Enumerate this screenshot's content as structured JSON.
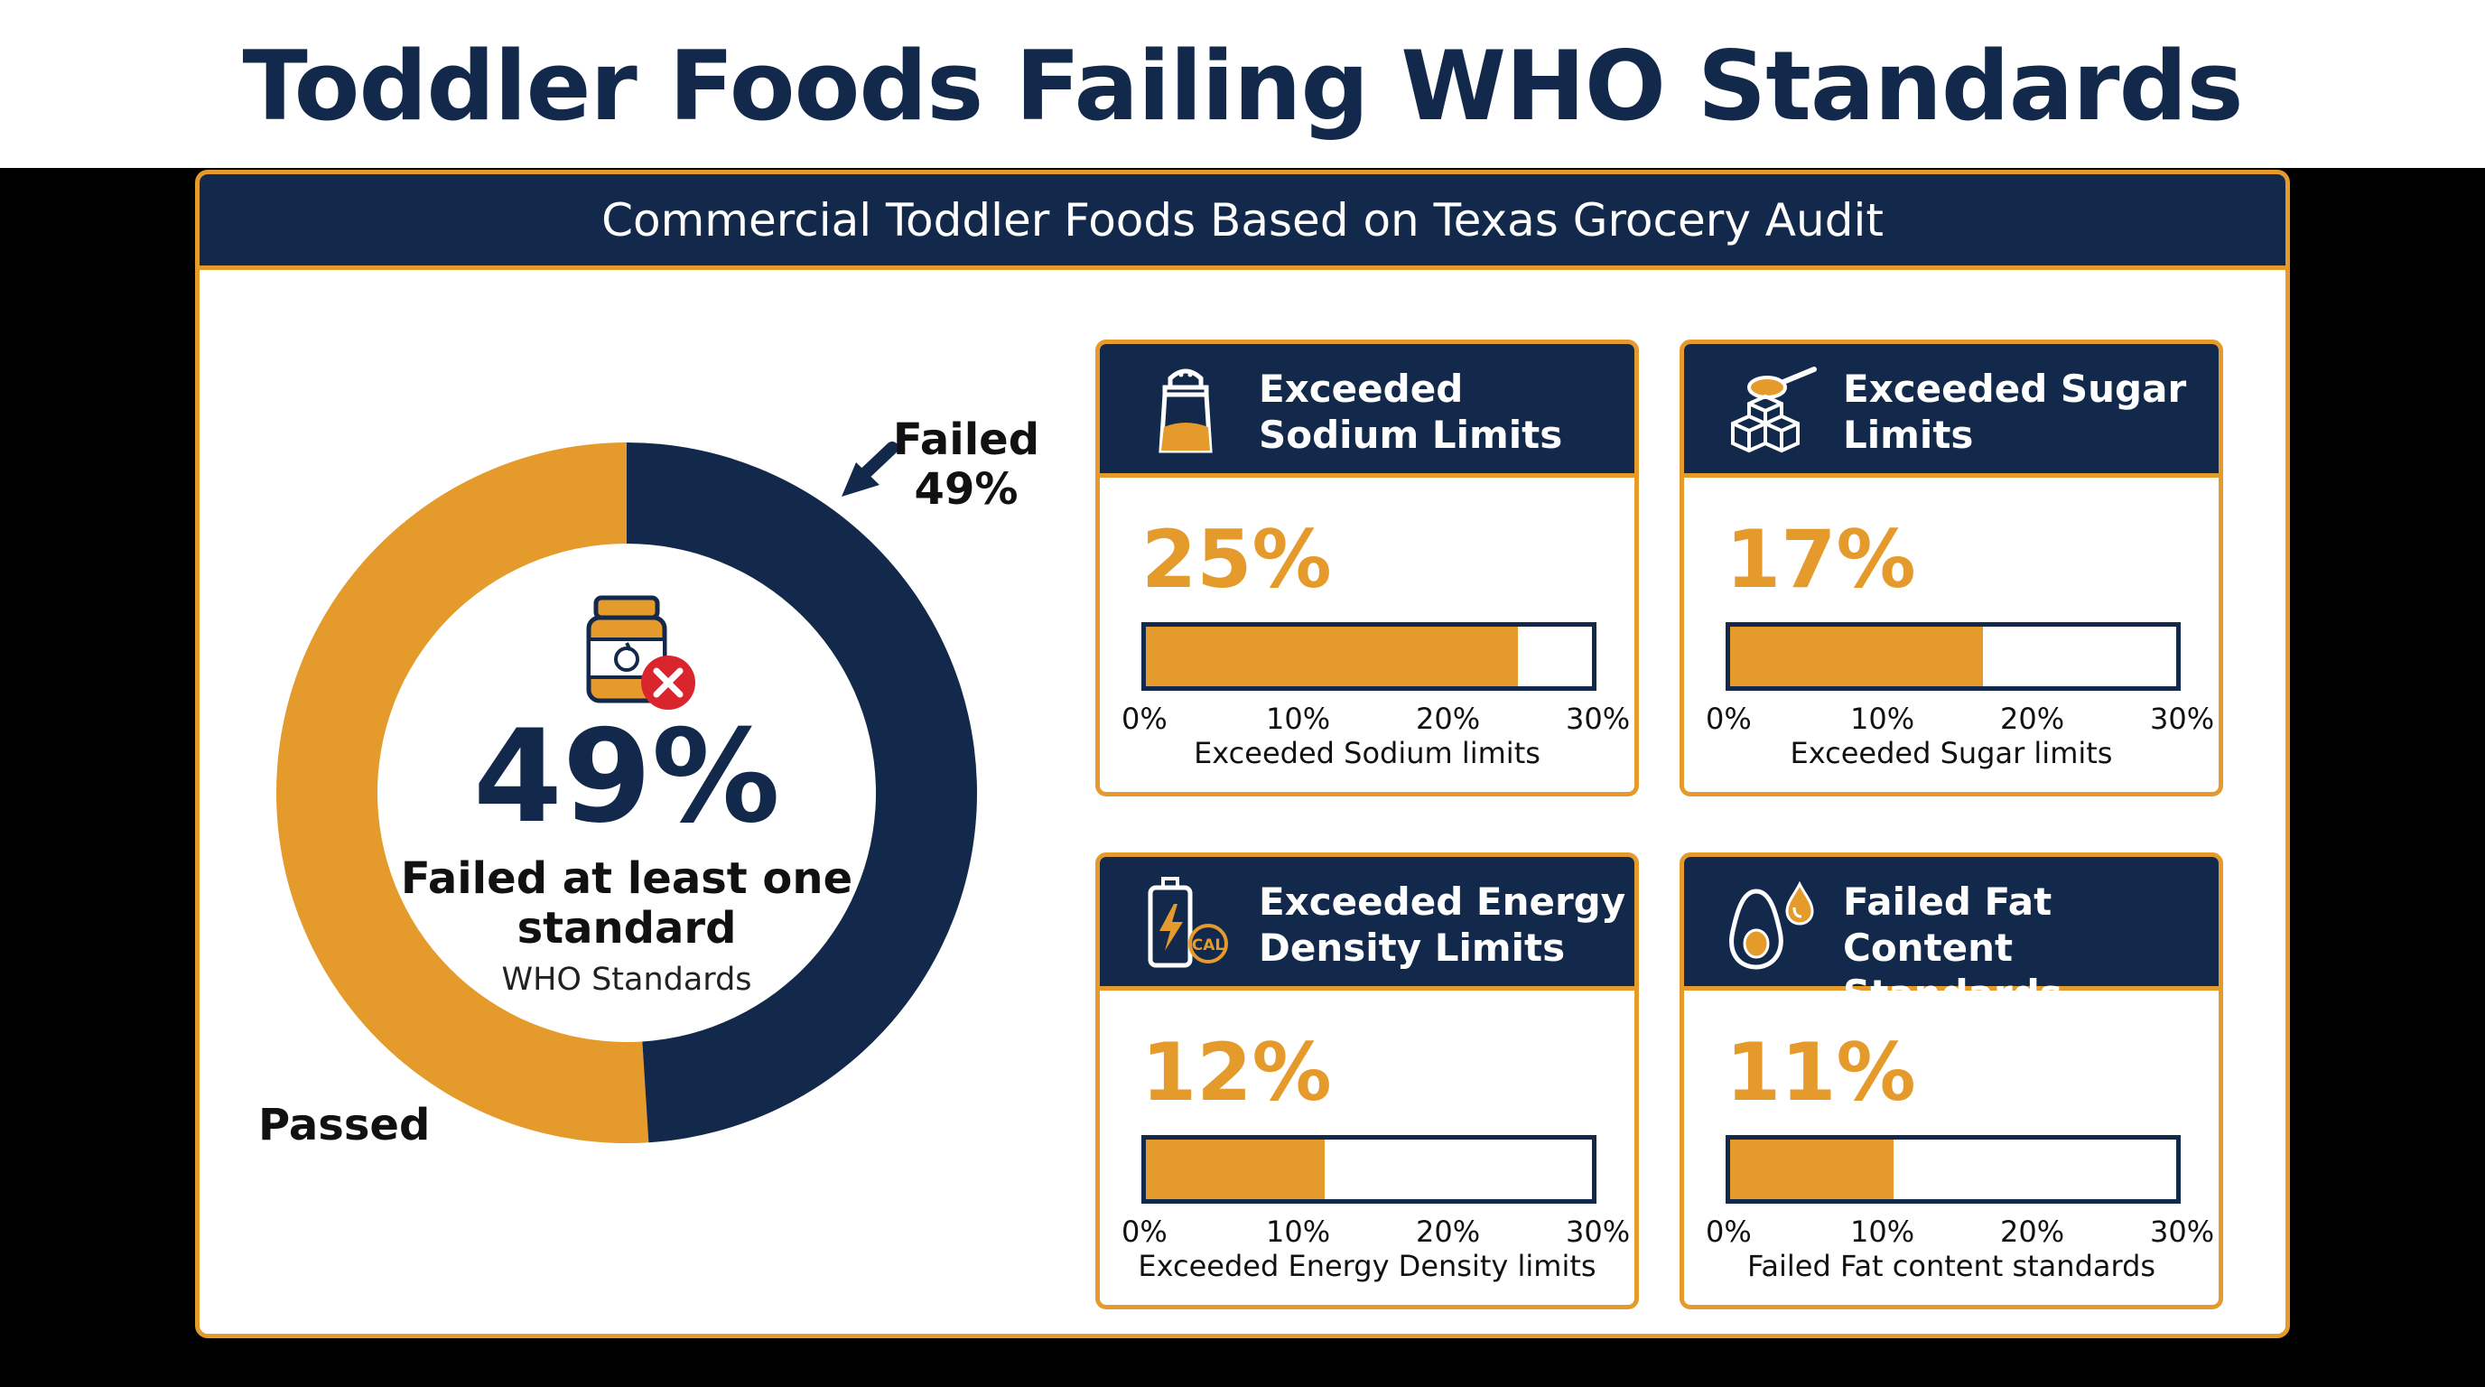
{
  "header": {
    "title": "Toddler Foods Failing WHO Standards",
    "subtitle": "Commercial Toddler Foods Based on Texas Grocery Audit"
  },
  "colors": {
    "navy": "#13294b",
    "orange": "#e59a2c",
    "red": "#d9262c"
  },
  "chart_data": [
    {
      "type": "pie",
      "style": "donut",
      "labels": [
        "Failed",
        "Passed"
      ],
      "values": [
        49,
        51
      ],
      "colors": [
        "#13294b",
        "#e59a2c"
      ],
      "center_value": "49%",
      "center_label": "Failed at least one standard",
      "center_sublabel": "WHO Standards",
      "callout_failed_label": "Failed",
      "callout_failed_value": "49%",
      "callout_passed_label": "Passed",
      "center_icon": "baby-food-jar-failed-icon"
    },
    {
      "type": "bar",
      "orientation": "horizontal",
      "title": "Exceeded Sodium Limits",
      "value": 25,
      "value_label": "25%",
      "xlim": [
        0,
        30
      ],
      "ticks": [
        "0%",
        "10%",
        "20%",
        "30%"
      ],
      "xlabel": "Exceeded Sodium limits",
      "icon": "salt-shaker-icon"
    },
    {
      "type": "bar",
      "orientation": "horizontal",
      "title": "Exceeded Sugar Limits",
      "value": 17,
      "value_label": "17%",
      "xlim": [
        0,
        30
      ],
      "ticks": [
        "0%",
        "10%",
        "20%",
        "30%"
      ],
      "xlabel": "Exceeded Sugar limits",
      "icon": "sugar-cubes-spoon-icon"
    },
    {
      "type": "bar",
      "orientation": "horizontal",
      "title": "Exceeded Energy Density Limits",
      "value": 12,
      "value_label": "12%",
      "xlim": [
        0,
        30
      ],
      "ticks": [
        "0%",
        "10%",
        "20%",
        "30%"
      ],
      "xlabel": "Exceeded Energy Density limits",
      "icon_text": "CAL",
      "icon": "energy-battery-cal-icon"
    },
    {
      "type": "bar",
      "orientation": "horizontal",
      "title": "Failed Fat Content Standards",
      "value": 11,
      "value_label": "11%",
      "xlim": [
        0,
        30
      ],
      "ticks": [
        "0%",
        "10%",
        "20%",
        "30%"
      ],
      "xlabel": "Failed Fat content standards",
      "icon": "avocado-oil-drop-icon"
    }
  ]
}
